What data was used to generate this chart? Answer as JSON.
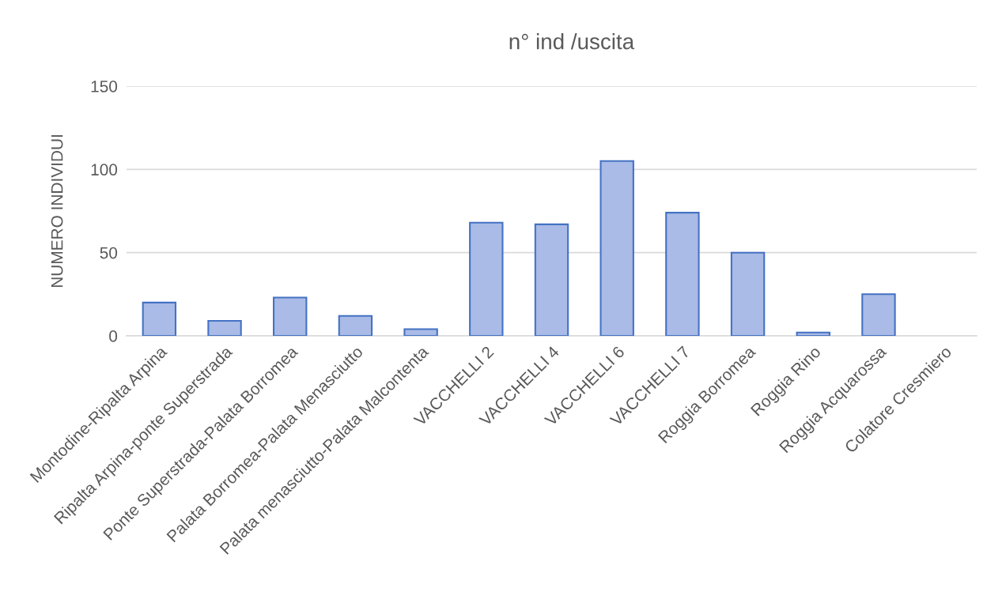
{
  "chart_data": {
    "type": "bar",
    "title": "n° ind /uscita",
    "ylabel": "NUMERO INDIVIDUI",
    "categories": [
      "Montodine-Ripalta Arpina",
      "Ripalta Arpina-ponte Superstrada",
      "Ponte Superstrada-Palata Borromea",
      "Palata Borromea-Palata Menasciutto",
      "Palata menasciutto-Palata Malcontenta",
      "VACCHELLI 2",
      "VACCHELLI 4",
      "VACCHELLI 6",
      "VACCHELLI 7",
      "Roggia Borromea",
      "Roggia Rino",
      "Roggia Acquarossa",
      "Colatore Cresmiero"
    ],
    "values": [
      20,
      9,
      23,
      12,
      4,
      68,
      67,
      105,
      74,
      50,
      2,
      25,
      0
    ],
    "color": "#a9bbe6",
    "ylim": [
      0,
      150
    ],
    "yticks": [
      0,
      50,
      100,
      150
    ],
    "grid": "y",
    "legend": false
  }
}
